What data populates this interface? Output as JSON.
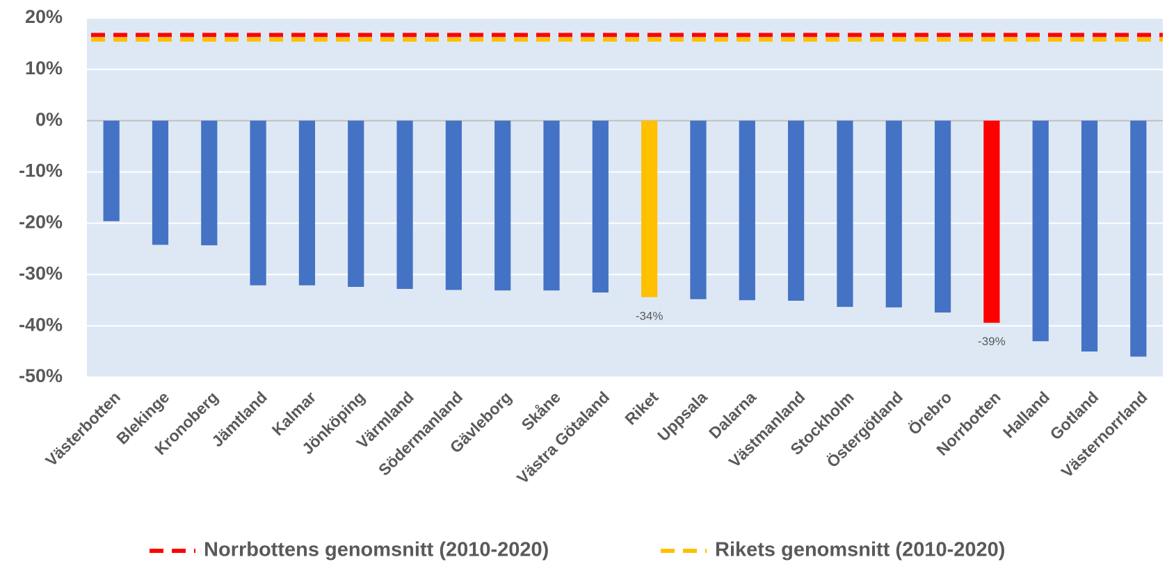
{
  "chart_data": {
    "type": "bar",
    "categories": [
      "Västerbotten",
      "Blekinge",
      "Kronoberg",
      "Jämtland",
      "Kalmar",
      "Jönköping",
      "Värmland",
      "Södermanland",
      "Gävleborg",
      "Skåne",
      "Västra Götaland",
      "Riket",
      "Uppsala",
      "Dalarna",
      "Västmanland",
      "Stockholm",
      "Östergötland",
      "Örebro",
      "Norrbotten",
      "Halland",
      "Gotland",
      "Västernorrland"
    ],
    "values": [
      -19.6,
      -24.2,
      -24.3,
      -32.1,
      -32.1,
      -32.4,
      -32.8,
      -33.0,
      -33.1,
      -33.1,
      -33.5,
      -34.4,
      -34.8,
      -35.0,
      -35.1,
      -36.3,
      -36.4,
      -37.4,
      -39.4,
      -43.0,
      -45.0,
      -46.0
    ],
    "value_labels": [
      null,
      null,
      null,
      null,
      null,
      null,
      null,
      null,
      null,
      null,
      null,
      "-34%",
      null,
      null,
      null,
      null,
      null,
      null,
      "-39%",
      null,
      null,
      null
    ],
    "colors": [
      "#4472c4",
      "#4472c4",
      "#4472c4",
      "#4472c4",
      "#4472c4",
      "#4472c4",
      "#4472c4",
      "#4472c4",
      "#4472c4",
      "#4472c4",
      "#4472c4",
      "#ffc000",
      "#4472c4",
      "#4472c4",
      "#4472c4",
      "#4472c4",
      "#4472c4",
      "#4472c4",
      "#ff0000",
      "#4472c4",
      "#4472c4",
      "#4472c4"
    ],
    "reference_lines": [
      {
        "name": "Norrbottens genomsnitt (2010-2020)",
        "color": "#ff0000",
        "value": 16.7
      },
      {
        "name": "Rikets genomsnitt (2010-2020)",
        "color": "#ffc000",
        "value": 15.8
      }
    ],
    "ylim": [
      -50,
      20
    ],
    "yticks": [
      {
        "value": -50,
        "label": "-50%"
      },
      {
        "value": -40,
        "label": "-40%"
      },
      {
        "value": -30,
        "label": "-30%"
      },
      {
        "value": -20,
        "label": "-20%"
      },
      {
        "value": -10,
        "label": "-10%"
      },
      {
        "value": 0,
        "label": "0%"
      },
      {
        "value": 10,
        "label": "10%"
      },
      {
        "value": 20,
        "label": "20%"
      }
    ],
    "grid": true,
    "legend": "bottom"
  }
}
